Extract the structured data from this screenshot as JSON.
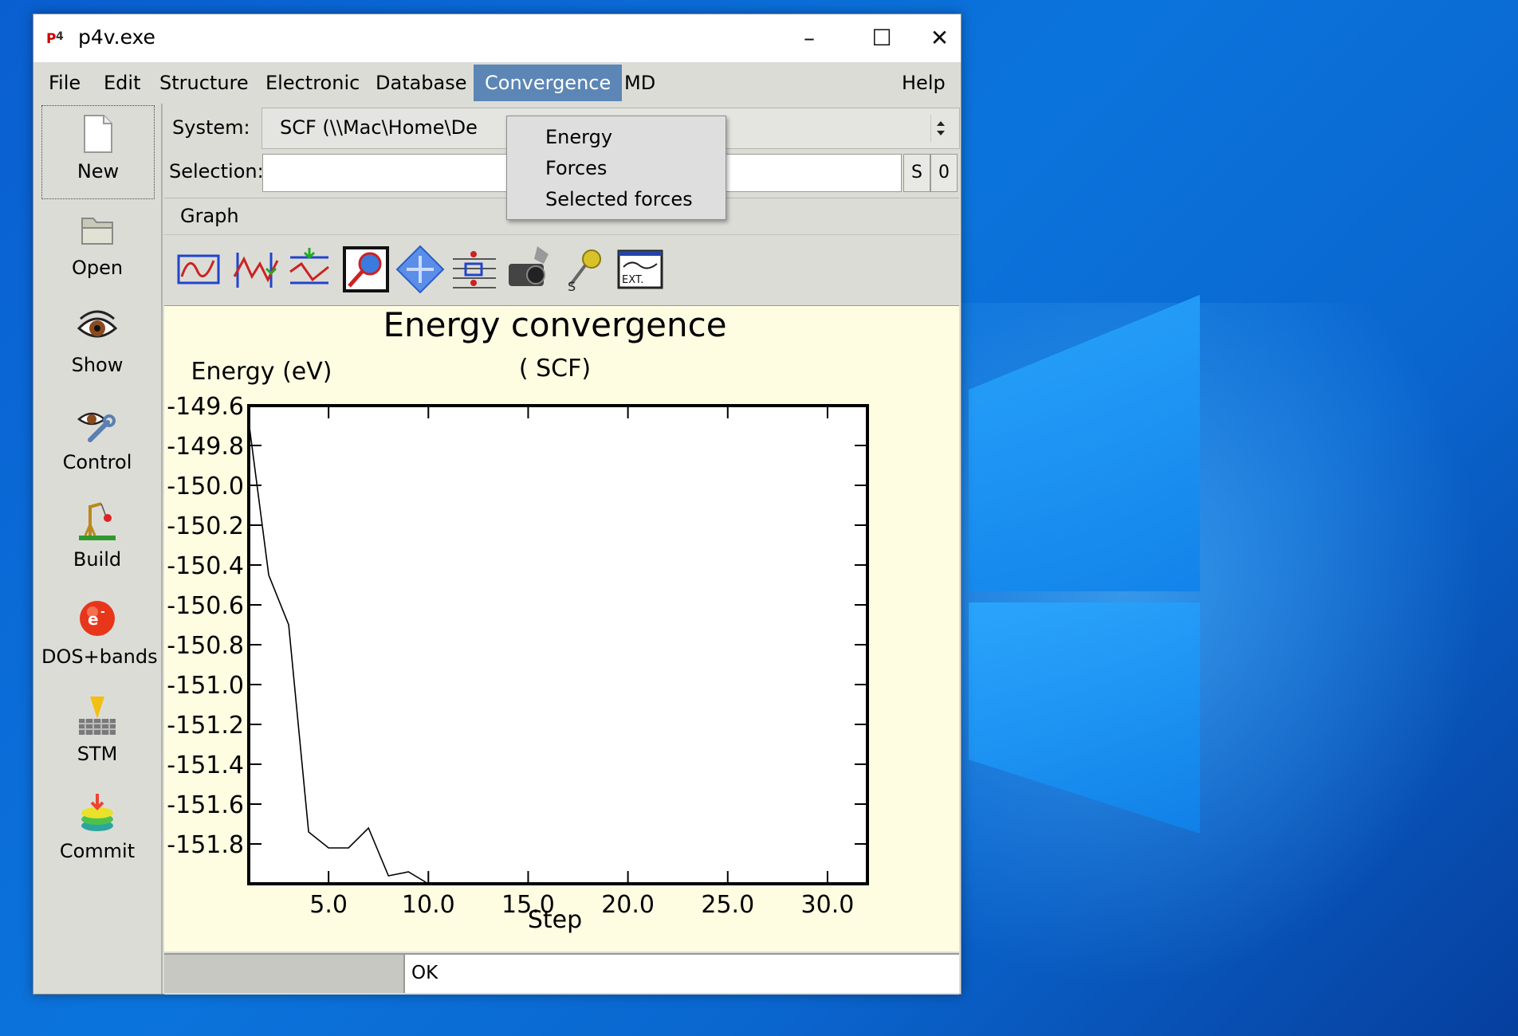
{
  "window": {
    "title": "p4v.exe"
  },
  "menubar": {
    "items": [
      "File",
      "Edit",
      "Structure",
      "Electronic",
      "Database",
      "Convergence",
      "MD"
    ],
    "help": "Help",
    "active": "Convergence"
  },
  "dropdown": {
    "items": [
      "Energy",
      "Forces",
      "Selected forces"
    ]
  },
  "sidebar": {
    "items": [
      {
        "label": "New",
        "icon": "new-file-icon"
      },
      {
        "label": "Open",
        "icon": "folder-icon"
      },
      {
        "label": "Show",
        "icon": "eye-icon"
      },
      {
        "label": "Control",
        "icon": "eye-wrench-icon"
      },
      {
        "label": "Build",
        "icon": "crane-icon"
      },
      {
        "label": "DOS+bands",
        "icon": "electron-icon"
      },
      {
        "label": "STM",
        "icon": "stm-icon"
      },
      {
        "label": "Commit",
        "icon": "commit-icon"
      }
    ]
  },
  "system": {
    "label": "System:",
    "value": "SCF (\\\\Mac\\Home\\De"
  },
  "selection": {
    "label": "Selection:",
    "value": "",
    "s_button": "S",
    "zero_button": "0"
  },
  "graph_tab": {
    "label": "Graph"
  },
  "toolbar": {
    "icons": [
      "graph-frame-icon",
      "graph-peaks-icon",
      "graph-split-icon",
      "zoom-icon",
      "pan-icon",
      "axes-adjust-icon",
      "camera-icon",
      "pin-icon",
      "external-icon"
    ],
    "ext_text": "EXT."
  },
  "status": {
    "left": "",
    "right": "OK"
  },
  "chart_data": {
    "type": "line",
    "title": "Energy convergence",
    "subtitle": "( SCF)",
    "ylabel": "Energy (eV)",
    "xlabel": "Step",
    "xlim": [
      1,
      32
    ],
    "ylim": [
      -152.0,
      -149.6
    ],
    "xticks": [
      "5.0",
      "10.0",
      "15.0",
      "20.0",
      "25.0",
      "30.0"
    ],
    "yticks": [
      "-149.6",
      "-149.8",
      "-150.0",
      "-150.2",
      "-150.4",
      "-150.6",
      "-150.8",
      "-151.0",
      "-151.2",
      "-151.4",
      "-151.6",
      "-151.8"
    ],
    "grid": false,
    "series": [
      {
        "x": [
          1,
          2,
          3,
          4,
          5,
          6,
          7,
          8,
          9,
          10
        ],
        "y": [
          -149.68,
          -150.45,
          -150.7,
          -151.74,
          -151.82,
          -151.82,
          -151.72,
          -151.96,
          -151.94,
          -152.0
        ]
      }
    ]
  },
  "colors": {
    "menu_active": "#5c86b5",
    "plot_bg": "#fefde2"
  }
}
